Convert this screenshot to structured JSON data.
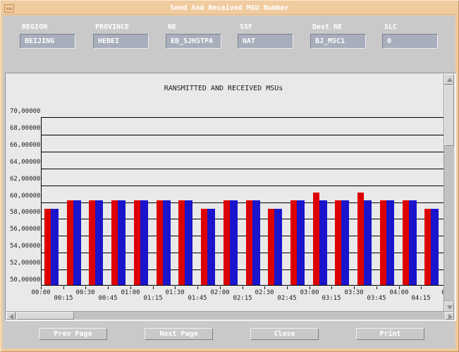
{
  "window": {
    "title": "Send And Received MSU Number"
  },
  "fields": [
    {
      "label": "REGION",
      "value": "BEIJING"
    },
    {
      "label": "PROVINCE",
      "value": "HEBEI"
    },
    {
      "label": "NE",
      "value": "EB_SJHSTPA"
    },
    {
      "label": "SSF",
      "value": "NAT"
    },
    {
      "label": "Dest NE",
      "value": "BJ_MSC1"
    },
    {
      "label": "SLC",
      "value": "0"
    }
  ],
  "buttons": {
    "prev": "Prev Page",
    "next": "Next Page",
    "close": "Close",
    "print": "Print"
  },
  "colors": {
    "frame_tan": "#f0cb9f",
    "content_gray": "#c9c9c9",
    "panel_gray": "#e9e9e9",
    "field_box": "#a8aebc",
    "bar_transmitted": "#dd0000",
    "bar_received": "#1a15cc"
  },
  "chart_data": {
    "type": "bar",
    "title": "RANSMITTED AND RECEIVED MSUs",
    "categories": [
      "00:00",
      "00:15",
      "00:30",
      "00:45",
      "01:00",
      "01:15",
      "01:30",
      "01:45",
      "02:00",
      "02:15",
      "02:30",
      "02:45",
      "03:00",
      "03:15",
      "03:30",
      "03:45",
      "04:00",
      "04:15"
    ],
    "x_end_label": "0",
    "y_tick_labels": [
      "70,00000",
      "68,00000",
      "66,00000",
      "64,00000",
      "62,00000",
      "60,00000",
      "58,00000",
      "56,00000",
      "54,00000",
      "52,00000",
      "50,00000"
    ],
    "ylim": [
      5000000,
      7000000
    ],
    "grid": true,
    "legend_position": "none",
    "series": [
      {
        "name": "transmitted",
        "color": "#dd0000",
        "values": [
          5900000,
          6000000,
          6000000,
          6000000,
          6000000,
          6000000,
          6000000,
          5900000,
          6000000,
          6000000,
          5900000,
          6000000,
          6100000,
          6000000,
          6100000,
          6000000,
          6000000,
          5900000
        ]
      },
      {
        "name": "received",
        "color": "#1a15cc",
        "values": [
          5900000,
          6000000,
          6000000,
          6000000,
          6000000,
          6000000,
          6000000,
          5900000,
          6000000,
          6000000,
          5900000,
          6000000,
          6000000,
          6000000,
          6000000,
          6000000,
          6000000,
          5900000
        ]
      }
    ]
  }
}
